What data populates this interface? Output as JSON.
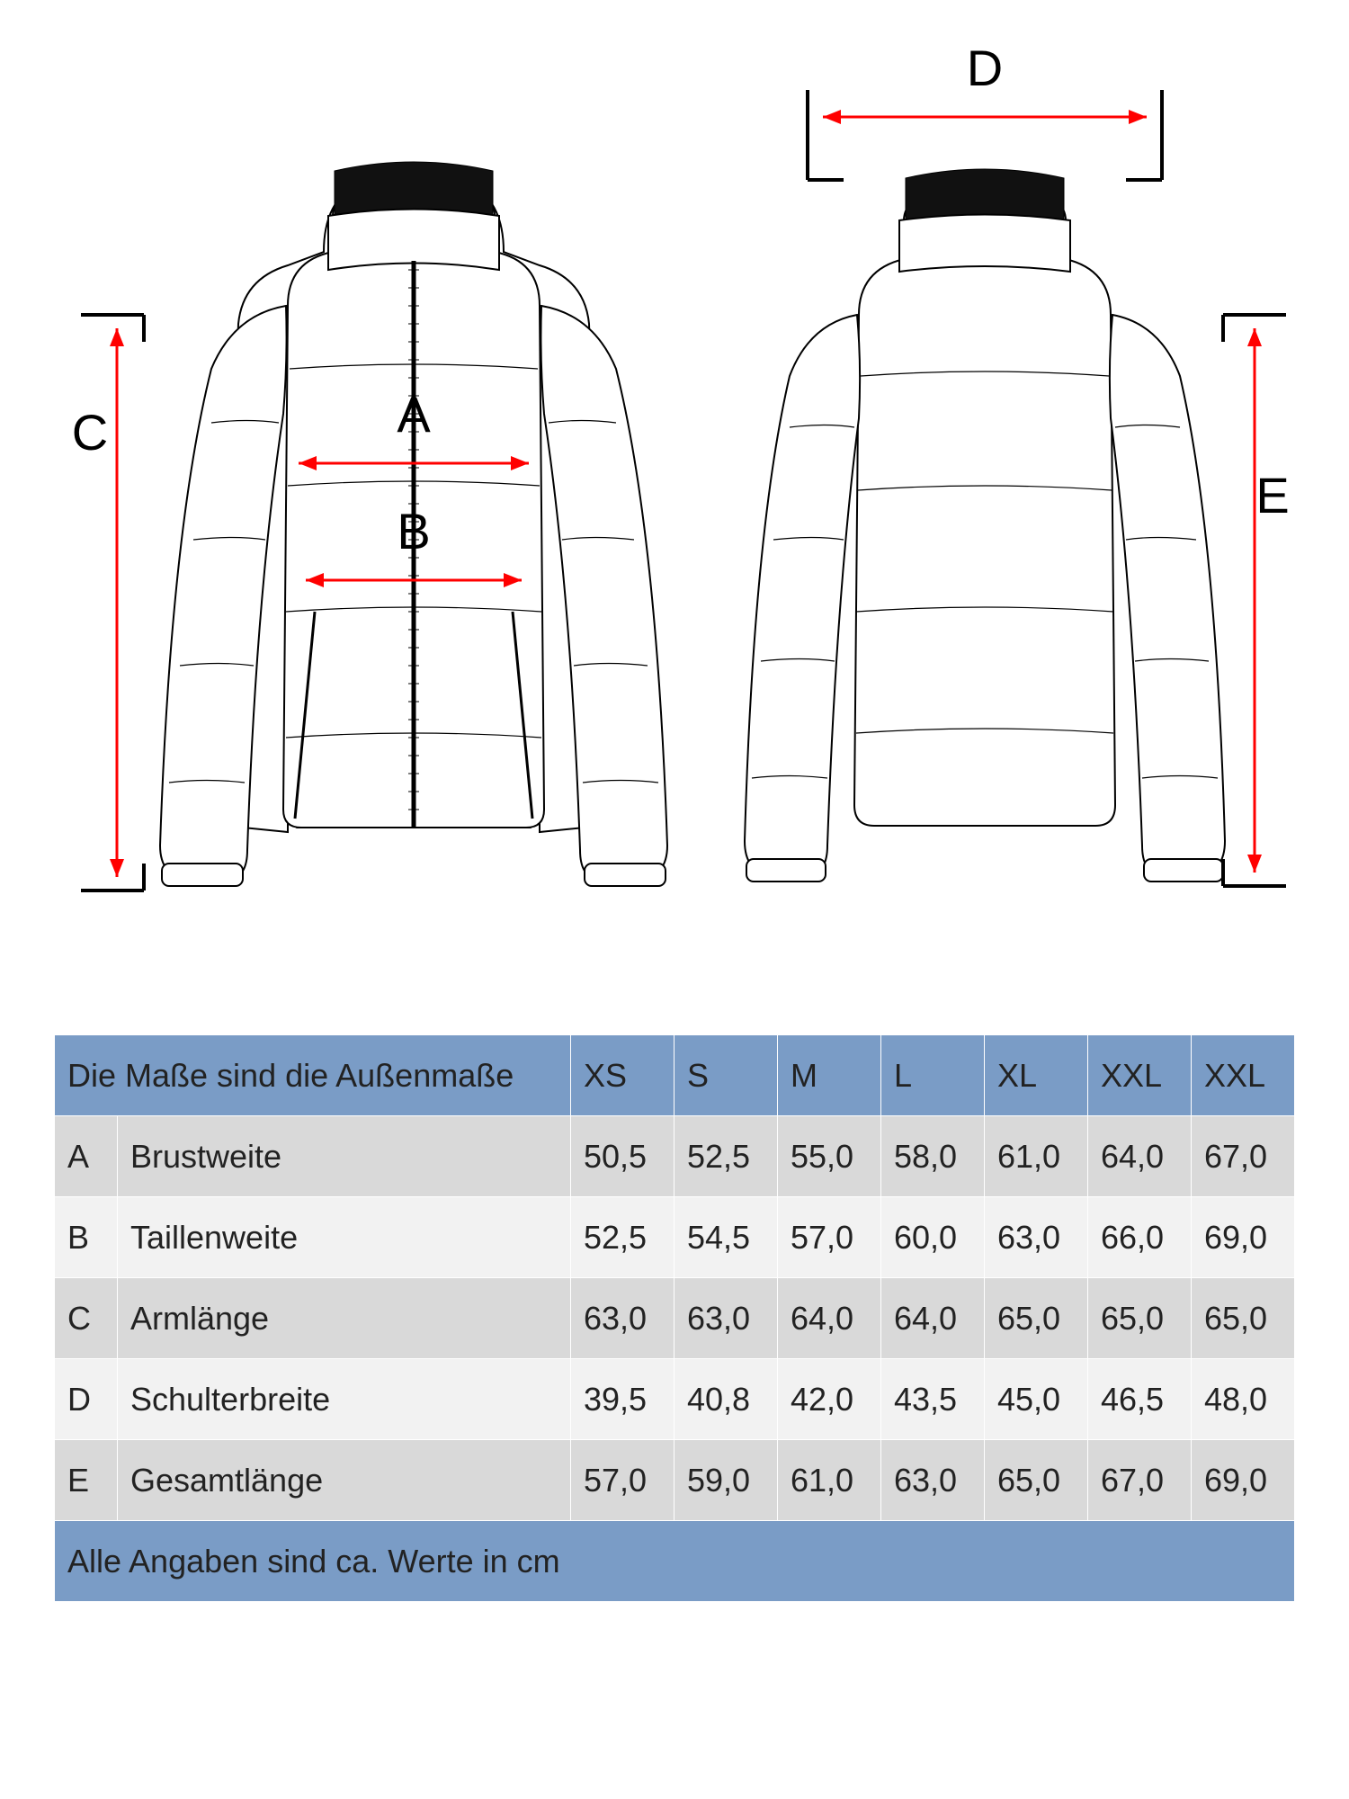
{
  "colors": {
    "arrow": "#ff0000",
    "header_bg": "#7a9cc6",
    "row_odd_bg": "#d9d9d9",
    "row_even_bg": "#f2f2f2",
    "footer_bg": "#7a9cc6",
    "text": "#222222",
    "border": "#ffffff"
  },
  "labels": {
    "A": "A",
    "B": "B",
    "C": "C",
    "D": "D",
    "E": "E"
  },
  "table": {
    "header_label": "Die Maße sind die Außenmaße",
    "sizes": [
      "XS",
      "S",
      "M",
      "L",
      "XL",
      "XXL",
      "XXL"
    ],
    "rows": [
      {
        "code": "A",
        "label": "Brustweite",
        "values": [
          "50,5",
          "52,5",
          "55,0",
          "58,0",
          "61,0",
          "64,0",
          "67,0"
        ]
      },
      {
        "code": "B",
        "label": "Taillenweite",
        "values": [
          "52,5",
          "54,5",
          "57,0",
          "60,0",
          "63,0",
          "66,0",
          "69,0"
        ]
      },
      {
        "code": "C",
        "label": "Armlänge",
        "values": [
          "63,0",
          "63,0",
          "64,0",
          "64,0",
          "65,0",
          "65,0",
          "65,0"
        ]
      },
      {
        "code": "D",
        "label": "Schulterbreite",
        "values": [
          "39,5",
          "40,8",
          "42,0",
          "43,5",
          "45,0",
          "46,5",
          "48,0"
        ]
      },
      {
        "code": "E",
        "label": "Gesamtlänge",
        "values": [
          "57,0",
          "59,0",
          "61,0",
          "63,0",
          "65,0",
          "67,0",
          "69,0"
        ]
      }
    ],
    "footer": "Alle Angaben sind ca. Werte in cm"
  }
}
